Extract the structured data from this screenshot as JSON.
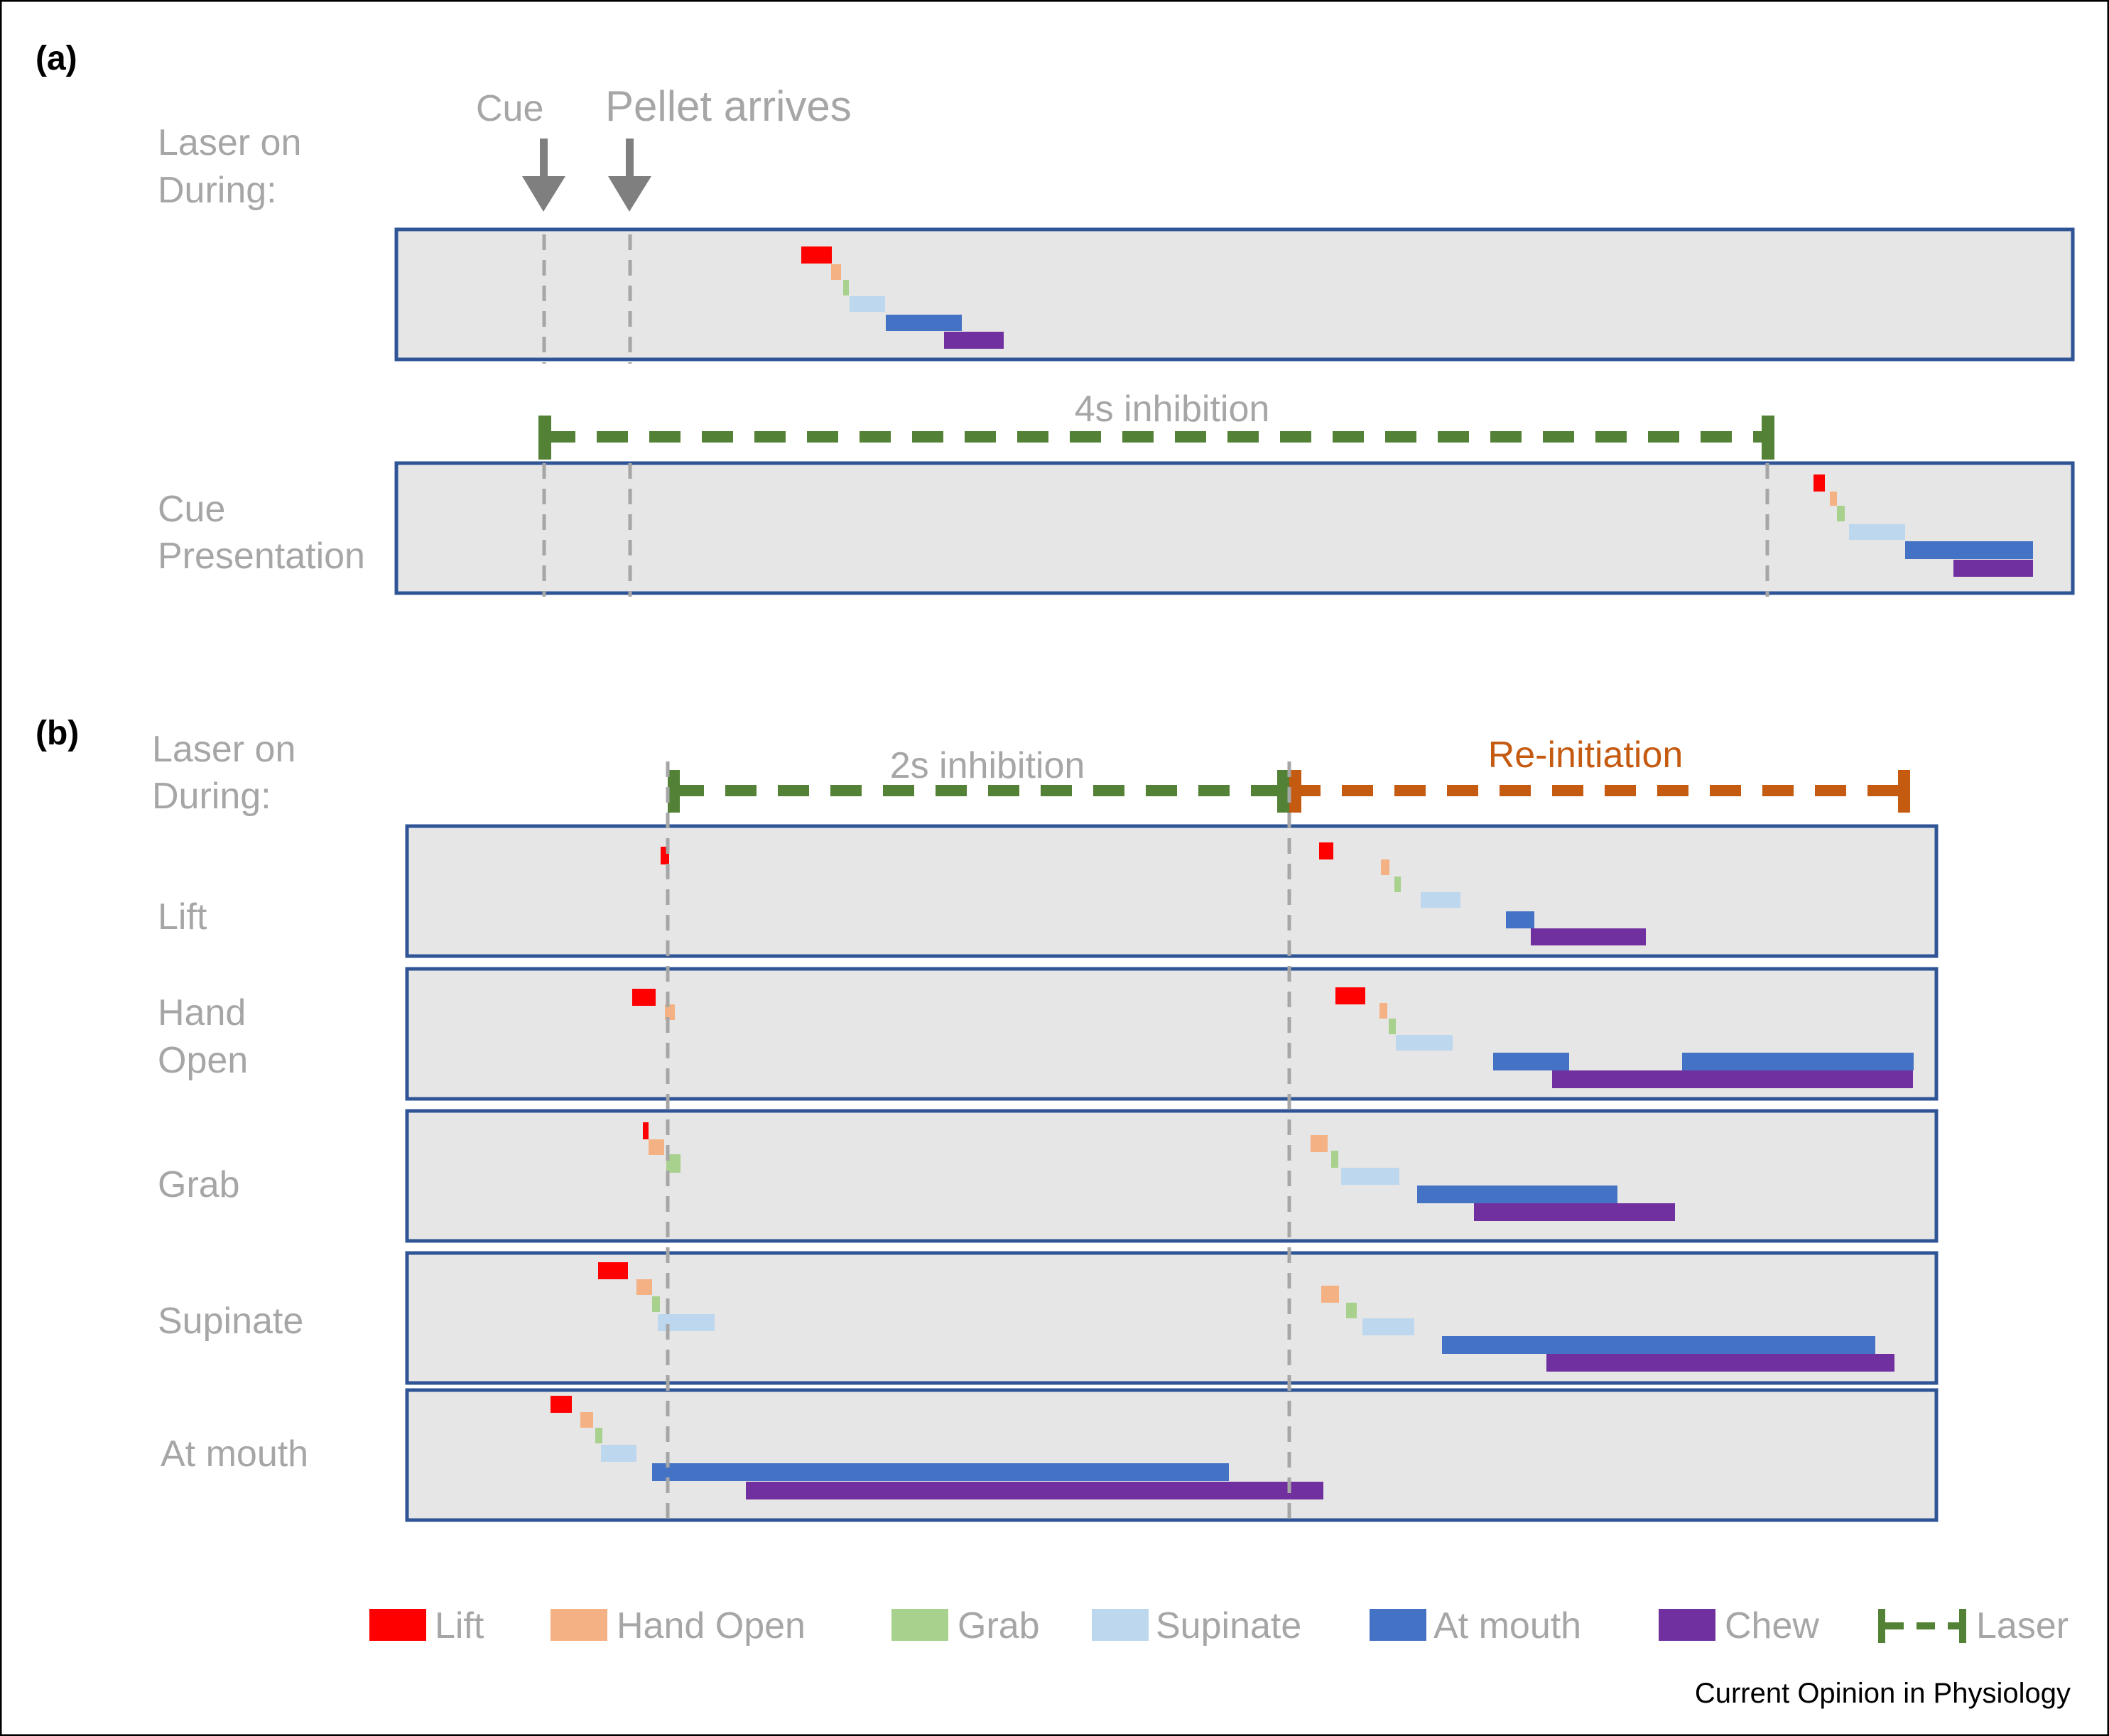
{
  "panel_a": {
    "letter": "(a)",
    "laser_on_label": [
      "Laser on",
      "During:"
    ],
    "cue_marker": "Cue",
    "pellet_marker": "Pellet arrives",
    "inhibition_label": "4s inhibition",
    "rows": [
      {
        "label_lines": []
      },
      {
        "label_lines": [
          "Cue",
          "Presentation"
        ]
      }
    ]
  },
  "panel_b": {
    "letter": "(b)",
    "laser_on_label": [
      "Laser on",
      "During:"
    ],
    "inhibition_label": "2s inhibition",
    "reinitiation_label": "Re-initiation",
    "rows": [
      {
        "label_lines": [
          "Lift"
        ]
      },
      {
        "label_lines": [
          "Hand",
          "Open"
        ]
      },
      {
        "label_lines": [
          "Grab"
        ]
      },
      {
        "label_lines": [
          "Supinate"
        ]
      },
      {
        "label_lines": [
          "At mouth"
        ]
      }
    ]
  },
  "legend": [
    {
      "label": "Lift",
      "color": "#ff0000"
    },
    {
      "label": "Hand Open",
      "color": "#f4b183"
    },
    {
      "label": "Grab",
      "color": "#a9d18e"
    },
    {
      "label": "Supinate",
      "color": "#bdd7ee"
    },
    {
      "label": "At mouth",
      "color": "#4472c4"
    },
    {
      "label": "Chew",
      "color": "#7030a0"
    },
    {
      "label": "Laser",
      "color": "#538135"
    }
  ],
  "reinitiation_color": "#c55a11",
  "source": "Current Opinion in Physiology"
}
